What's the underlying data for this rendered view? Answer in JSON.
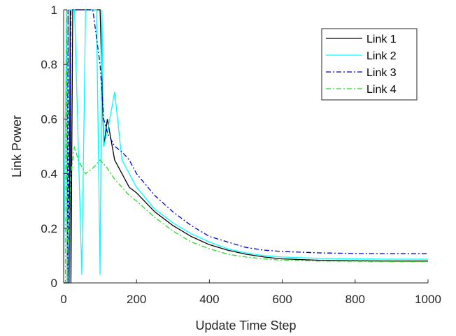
{
  "chart_data": {
    "type": "line",
    "title": "",
    "xlabel": "Update Time Step",
    "ylabel": "Link Power",
    "xlim": [
      0,
      1000
    ],
    "ylim": [
      0,
      1
    ],
    "xticks": [
      0,
      200,
      400,
      600,
      800,
      1000
    ],
    "yticks": [
      0,
      0.2,
      0.4,
      0.6,
      0.8,
      1
    ],
    "ytick_labels": [
      "0",
      "0.2",
      "0.4",
      "0.6",
      "0.8",
      "1"
    ],
    "grid": false,
    "legend_position": "top-right",
    "series": [
      {
        "name": "Link 1",
        "color": "#000000",
        "dash": "solid",
        "x": [
          0,
          15,
          18,
          20,
          25,
          40,
          60,
          80,
          100,
          110,
          120,
          140,
          160,
          180,
          200,
          250,
          300,
          350,
          400,
          450,
          500,
          550,
          600,
          700,
          800,
          900,
          1000
        ],
        "y": [
          0,
          0,
          1,
          0,
          1,
          1,
          1,
          1,
          1,
          0.5,
          0.6,
          0.45,
          0.4,
          0.35,
          0.33,
          0.26,
          0.21,
          0.17,
          0.14,
          0.12,
          0.105,
          0.095,
          0.088,
          0.083,
          0.081,
          0.08,
          0.08
        ]
      },
      {
        "name": "Link 2",
        "color": "#00ffff",
        "dash": "solid",
        "x": [
          0,
          8,
          10,
          12,
          20,
          30,
          50,
          60,
          70,
          90,
          100,
          105,
          110,
          120,
          140,
          160,
          180,
          200,
          250,
          300,
          350,
          400,
          450,
          500,
          550,
          600,
          700,
          800,
          900,
          1000
        ],
        "y": [
          0,
          1,
          0,
          1,
          1,
          1,
          0.03,
          1,
          1,
          1,
          0.03,
          1,
          0.5,
          0.55,
          0.7,
          0.45,
          0.4,
          0.35,
          0.27,
          0.22,
          0.18,
          0.15,
          0.125,
          0.11,
          0.1,
          0.095,
          0.09,
          0.088,
          0.087,
          0.087
        ]
      },
      {
        "name": "Link 3",
        "color": "#0000cd",
        "dash": "dashdot",
        "x": [
          0,
          10,
          12,
          14,
          20,
          40,
          60,
          80,
          100,
          110,
          120,
          140,
          160,
          180,
          200,
          250,
          300,
          350,
          400,
          450,
          500,
          550,
          600,
          700,
          800,
          900,
          1000
        ],
        "y": [
          0,
          0,
          1,
          0,
          1,
          1,
          1,
          1,
          0.8,
          0.6,
          0.55,
          0.5,
          0.48,
          0.45,
          0.4,
          0.32,
          0.26,
          0.21,
          0.17,
          0.15,
          0.13,
          0.12,
          0.115,
          0.11,
          0.108,
          0.107,
          0.107
        ]
      },
      {
        "name": "Link 4",
        "color": "#22dd22",
        "dash": "dashdot",
        "x": [
          0,
          5,
          8,
          10,
          20,
          30,
          40,
          60,
          80,
          100,
          120,
          140,
          160,
          180,
          200,
          250,
          300,
          350,
          400,
          450,
          500,
          550,
          600,
          700,
          800,
          900,
          1000
        ],
        "y": [
          0,
          0,
          1,
          0,
          0.4,
          0.5,
          0.45,
          0.4,
          0.42,
          0.45,
          0.42,
          0.38,
          0.35,
          0.32,
          0.3,
          0.24,
          0.19,
          0.15,
          0.125,
          0.105,
          0.095,
          0.088,
          0.083,
          0.08,
          0.079,
          0.078,
          0.078
        ]
      }
    ]
  }
}
